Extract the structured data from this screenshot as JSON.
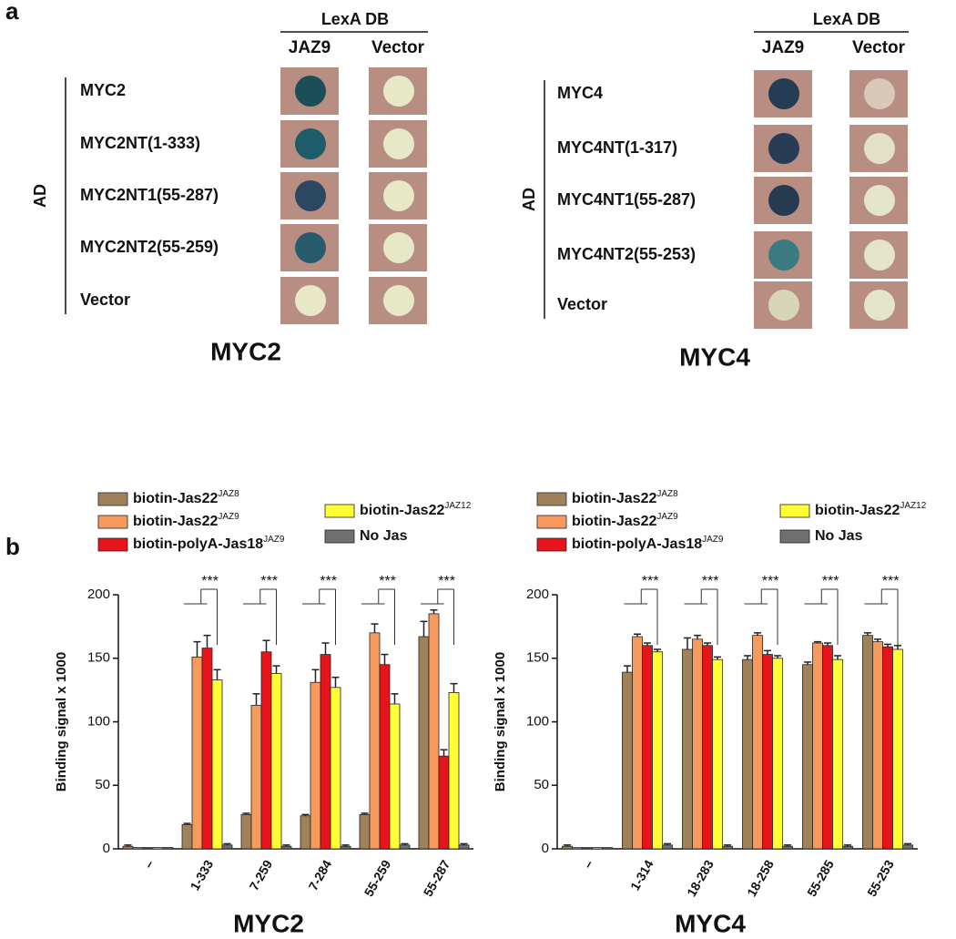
{
  "panel_a": {
    "label": "a",
    "blots": [
      {
        "header": "LexA DB",
        "columns": [
          "JAZ9",
          "Vector"
        ],
        "row_axis": "AD",
        "title": "MYC2",
        "rows": [
          {
            "label": "MYC2",
            "spots": [
              "#1b4f58",
              "#e6e8c8"
            ]
          },
          {
            "label": "MYC2NT(1-333)",
            "spots": [
              "#1d5c68",
              "#e6e8c8"
            ]
          },
          {
            "label": "MYC2NT1(55-287)",
            "spots": [
              "#2b4860",
              "#e6e8c8"
            ]
          },
          {
            "label": "MYC2NT2(55-259)",
            "spots": [
              "#285c6c",
              "#e6e8c8"
            ]
          },
          {
            "label": "Vector",
            "spots": [
              "#e8e8c8",
              "#e6e8c8"
            ]
          }
        ]
      },
      {
        "header": "LexA DB",
        "columns": [
          "JAZ9",
          "Vector"
        ],
        "row_axis": "AD",
        "title": "MYC4",
        "rows": [
          {
            "label": "MYC4",
            "spots": [
              "#253c55",
              "#dac8b8"
            ]
          },
          {
            "label": "MYC4NT(1-317)",
            "spots": [
              "#283c55",
              "#e2e0c6"
            ]
          },
          {
            "label": "MYC4NT1(55-287)",
            "spots": [
              "#263a50",
              "#e4e4c8"
            ]
          },
          {
            "label": "MYC4NT2(55-253)",
            "spots": [
              "#3a7a80",
              "#e4e4c8"
            ]
          },
          {
            "label": "Vector",
            "spots": [
              "#d8d6b8",
              "#e4e4c8"
            ]
          }
        ]
      }
    ]
  },
  "panel_b": {
    "label": "b"
  },
  "chart_data": [
    {
      "type": "bar",
      "title": "MYC2",
      "ylabel": "Binding  signal x 1000",
      "significance": "***",
      "categories": [
        "–",
        "1-333",
        "7-259",
        "7-284",
        "55-259",
        "55-287"
      ],
      "ylim": [
        0,
        200
      ],
      "yticks": [
        0,
        50,
        100,
        150,
        200
      ],
      "series": [
        {
          "name": "biotin-Jas22",
          "superscript": "JAZ8",
          "color": "#a0825a",
          "values": [
            2,
            19,
            27,
            26,
            27,
            167
          ],
          "errors": [
            1,
            1,
            1,
            1,
            1,
            12
          ]
        },
        {
          "name": "biotin-Jas22",
          "superscript": "JAZ9",
          "color": "#f79a5e",
          "values": [
            1,
            151,
            113,
            131,
            170,
            185
          ],
          "errors": [
            0,
            12,
            9,
            10,
            7,
            3
          ]
        },
        {
          "name": "biotin-polyA-Jas18",
          "superscript": "JAZ9",
          "color": "#e8141c",
          "values": [
            1,
            158,
            155,
            153,
            145,
            73
          ],
          "errors": [
            0,
            10,
            9,
            9,
            8,
            5
          ]
        },
        {
          "name": "biotin-Jas22",
          "superscript": "JAZ12",
          "color": "#ffff33",
          "values": [
            1,
            133,
            138,
            127,
            114,
            123
          ],
          "errors": [
            0,
            8,
            6,
            8,
            8,
            7
          ]
        },
        {
          "name": "No Jas",
          "color": "#707070",
          "values": [
            1,
            3,
            2,
            2,
            3,
            3
          ],
          "errors": [
            0,
            1,
            1,
            1,
            1,
            1
          ]
        }
      ]
    },
    {
      "type": "bar",
      "title": "MYC4",
      "ylabel": "Binding  signal x 1000",
      "significance": "***",
      "categories": [
        "–",
        "1-314",
        "18-283",
        "18-258",
        "55-285",
        "55-253"
      ],
      "ylim": [
        0,
        200
      ],
      "yticks": [
        0,
        50,
        100,
        150,
        200
      ],
      "series": [
        {
          "name": "biotin-Jas22",
          "superscript": "JAZ8",
          "color": "#a0825a",
          "values": [
            2,
            139,
            157,
            149,
            145,
            168
          ],
          "errors": [
            1,
            5,
            9,
            3,
            2,
            2
          ]
        },
        {
          "name": "biotin-Jas22",
          "superscript": "JAZ9",
          "color": "#f79a5e",
          "values": [
            1,
            167,
            165,
            168,
            162,
            163
          ],
          "errors": [
            0,
            2,
            3,
            2,
            1,
            2
          ]
        },
        {
          "name": "biotin-polyA-Jas18",
          "superscript": "JAZ9",
          "color": "#e8141c",
          "values": [
            1,
            160,
            160,
            153,
            160,
            159
          ],
          "errors": [
            0,
            2,
            2,
            3,
            2,
            2
          ]
        },
        {
          "name": "biotin-Jas22",
          "superscript": "JAZ12",
          "color": "#ffff33",
          "values": [
            1,
            155,
            149,
            150,
            149,
            157
          ],
          "errors": [
            0,
            2,
            2,
            2,
            3,
            3
          ]
        },
        {
          "name": "No Jas",
          "color": "#707070",
          "values": [
            1,
            3,
            2,
            2,
            2,
            3
          ],
          "errors": [
            0,
            1,
            1,
            1,
            1,
            1
          ]
        }
      ]
    }
  ]
}
